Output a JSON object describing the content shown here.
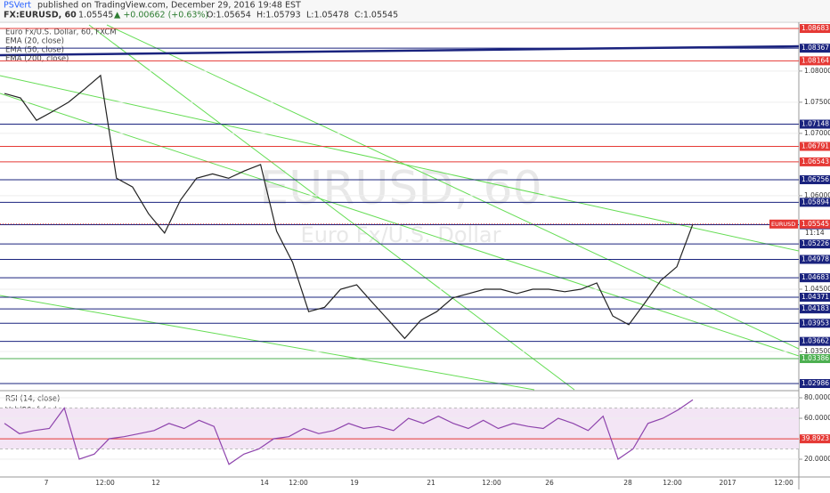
{
  "header": {
    "publisher": "PSVert",
    "published": "published on TradingView.com, December 29, 2016 19:48 EST",
    "symbol": "FX:EURUSD, 60",
    "last": "1.05545",
    "change": "▲ +0.00662 (+0.63%)",
    "open": "O:1.05654",
    "high": "H:1.05793",
    "low": "L:1.05478",
    "close": "C:1.05545"
  },
  "legend": [
    "Euro Fx/U.S. Dollar, 60, FXCM",
    "EMA (20, close)",
    "EMA (50, close)",
    "EMA (200, close)"
  ],
  "watermark": {
    "symbol": "EURUSD, 60",
    "name": "Euro Fx/U.S. Dollar"
  },
  "time_axis": [
    "7",
    "12:00",
    "12",
    "14",
    "12:00",
    "19",
    "21",
    "12:00",
    "26",
    "28",
    "12:00",
    "2017",
    "12:00"
  ],
  "chart_data": [
    {
      "type": "line",
      "ylim": [
        1.02886,
        1.08769
      ],
      "yticks": [
        {
          "value": 1.08,
          "label": "1.08000"
        },
        {
          "value": 1.075,
          "label": "1.07500"
        },
        {
          "value": 1.07,
          "label": "1.07000"
        },
        {
          "value": 1.06,
          "label": "1.06000"
        },
        {
          "value": 1.045,
          "label": "1.04500"
        },
        {
          "value": 1.035,
          "label": "1.03500"
        }
      ],
      "levels": [
        {
          "value": 1.08683,
          "color": "#e53935"
        },
        {
          "value": 1.08367,
          "color": "#1a237e"
        },
        {
          "value": 1.08164,
          "color": "#e53935"
        },
        {
          "value": 1.07148,
          "color": "#1a237e"
        },
        {
          "value": 1.06791,
          "color": "#e53935"
        },
        {
          "value": 1.06543,
          "color": "#e53935"
        },
        {
          "value": 1.06256,
          "color": "#1a237e"
        },
        {
          "value": 1.05894,
          "color": "#1a237e"
        },
        {
          "value": 1.05534,
          "color": "#1a237e"
        },
        {
          "value": 1.05226,
          "color": "#1a237e"
        },
        {
          "value": 1.04978,
          "color": "#1a237e"
        },
        {
          "value": 1.04683,
          "color": "#1a237e"
        },
        {
          "value": 1.04371,
          "color": "#1a237e"
        },
        {
          "value": 1.04183,
          "color": "#1a237e"
        },
        {
          "value": 1.03953,
          "color": "#1a237e"
        },
        {
          "value": 1.03662,
          "color": "#1a237e"
        },
        {
          "value": 1.03386,
          "color": "#4caf50"
        },
        {
          "value": 1.02986,
          "color": "#1a237e"
        }
      ],
      "series": [
        {
          "name": "EURUSD",
          "color": "#222222",
          "values": [
            1.0764,
            1.0757,
            1.0721,
            1.0735,
            1.075,
            1.0771,
            1.0793,
            1.0628,
            1.0614,
            1.0571,
            1.054,
            1.0593,
            1.0628,
            1.0635,
            1.0628,
            1.064,
            1.065,
            1.0543,
            1.0493,
            1.0414,
            1.0421,
            1.045,
            1.0457,
            1.0428,
            1.04,
            1.0371,
            1.04,
            1.0414,
            1.0436,
            1.0443,
            1.045,
            1.045,
            1.0443,
            1.045,
            1.045,
            1.0446,
            1.045,
            1.046,
            1.0407,
            1.0393,
            1.0428,
            1.0464,
            1.0486,
            1.05545
          ]
        }
      ],
      "last_value": 1.05545,
      "last_color": "#e53935",
      "last_label": "EURUSD",
      "countdown": "11:14"
    },
    {
      "type": "line",
      "title": "RSI (14, close)",
      "subtitle": "Vol (20, false)",
      "ylim": [
        3.5,
        86.1
      ],
      "yticks": [
        {
          "value": 80,
          "label": "80.0000"
        },
        {
          "value": 60,
          "label": "60.0000"
        },
        {
          "value": 20,
          "label": "20.0000"
        }
      ],
      "band": [
        30,
        70
      ],
      "level": {
        "value": 39.8923,
        "color": "#e53935"
      },
      "series": [
        {
          "name": "RSI",
          "color": "#8e44ad",
          "values": [
            55,
            45,
            48,
            50,
            70,
            20,
            25,
            40,
            42,
            45,
            48,
            55,
            50,
            58,
            52,
            15,
            25,
            30,
            40,
            42,
            50,
            45,
            48,
            55,
            50,
            52,
            48,
            60,
            55,
            62,
            55,
            50,
            58,
            50,
            55,
            52,
            50,
            60,
            55,
            48,
            62,
            20,
            30,
            55,
            60,
            68,
            78
          ]
        }
      ]
    }
  ]
}
